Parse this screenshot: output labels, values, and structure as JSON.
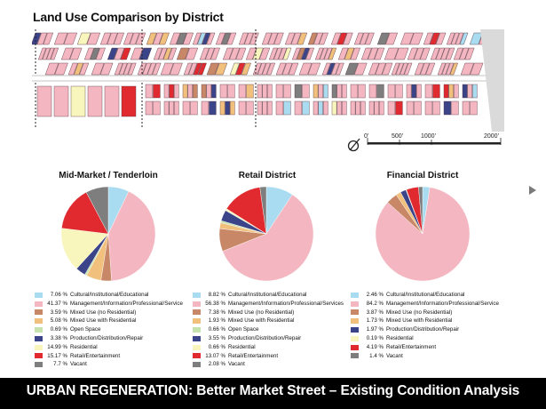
{
  "page": {
    "title": "Land Use Comparison by District",
    "footer": "URBAN REGENERATION: Better Market Street – Existing Condition Analysis"
  },
  "map": {
    "scale_labels": [
      "0'",
      "500'",
      "1000'",
      "2000'"
    ],
    "north_icon": "north-arrow-icon"
  },
  "colors": {
    "Cultural/Institutional/Educational": "#a9dcf1",
    "Management/Information/Professional/Services": "#f4b6c1",
    "Mixed Use (no Residential)": "#c88868",
    "Mixed Use with Residential": "#f1c07d",
    "Open Space": "#c6e3ad",
    "Production/Distribution/Repair": "#3b4488",
    "Residential": "#f8f5bd",
    "Retail/Entertainment": "#e02a30",
    "Vacant": "#7e7e7e"
  },
  "chart_data": [
    {
      "type": "pie",
      "title": "Mid-Market / Tenderloin",
      "categories": [
        "Cultural/Institutional/Educational",
        "Management/Information/Professional/Service",
        "Mixed Use (no Residential)",
        "Mixed Use with Residential",
        "Open Space",
        "Production/Distribution/Repair",
        "Residential",
        "Retail/Entertainment",
        "Vacant"
      ],
      "color_keys": [
        "Cultural/Institutional/Educational",
        "Management/Information/Professional/Services",
        "Mixed Use (no Residential)",
        "Mixed Use with Residential",
        "Open Space",
        "Production/Distribution/Repair",
        "Residential",
        "Retail/Entertainment",
        "Vacant"
      ],
      "values": [
        7.06,
        41.37,
        3.59,
        5.08,
        0.69,
        3.38,
        14.99,
        15.17,
        7.7
      ],
      "labels": [
        "7.06 %",
        "41.37 %",
        "3.59 %",
        "5.08 %",
        "0.69 %",
        "3.38 %",
        "14.99 %",
        "15.17 %",
        "7.7 %"
      ]
    },
    {
      "type": "pie",
      "title": "Retail District",
      "categories": [
        "Cultural/Institutional/Educational",
        "Management/Information/Professional/Services",
        "Mixed Use (no Residential)",
        "Mixed Use with Residential",
        "Open Space",
        "Production/Distribution/Repair",
        "Residential",
        "Retail/Entertainment",
        "Vacant"
      ],
      "color_keys": [
        "Cultural/Institutional/Educational",
        "Management/Information/Professional/Services",
        "Mixed Use (no Residential)",
        "Mixed Use with Residential",
        "Open Space",
        "Production/Distribution/Repair",
        "Residential",
        "Retail/Entertainment",
        "Vacant"
      ],
      "values": [
        8.82,
        56.38,
        7.38,
        1.93,
        0.66,
        3.55,
        0.66,
        13.07,
        2.08
      ],
      "labels": [
        "8.82 %",
        "56.38 %",
        "7.38 %",
        "1.93 %",
        "0.66 %",
        "3.55 %",
        "0.66 %",
        "13.07 %",
        "2.08 %"
      ]
    },
    {
      "type": "pie",
      "title": "Financial District",
      "categories": [
        "Cultural/Institutional/Educational",
        "Management/Information/Professional/Service",
        "Mixed Use (no Residential)",
        "Mixed Use with Residential",
        "Production/Distribution/Repair",
        "Residential",
        "Retail/Entertainment",
        "Vacant"
      ],
      "color_keys": [
        "Cultural/Institutional/Educational",
        "Management/Information/Professional/Services",
        "Mixed Use (no Residential)",
        "Mixed Use with Residential",
        "Production/Distribution/Repair",
        "Residential",
        "Retail/Entertainment",
        "Vacant"
      ],
      "values": [
        2.46,
        84.2,
        3.87,
        1.73,
        1.97,
        0.19,
        4.19,
        1.4
      ],
      "labels": [
        "2.46 %",
        "84.2 %",
        "3.87 %",
        "1.73 %",
        "1.97 %",
        "0.19 %",
        "4.19 %",
        "1.4 %"
      ]
    }
  ]
}
